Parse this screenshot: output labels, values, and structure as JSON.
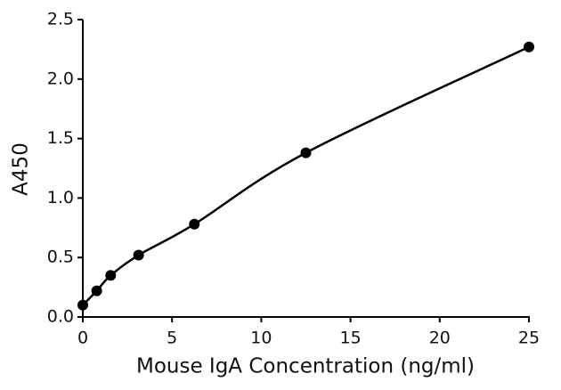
{
  "chart_data": {
    "type": "scatter",
    "xlabel": "Mouse IgA Concentration (ng/ml)",
    "ylabel": "A450",
    "x": [
      0,
      0.78,
      1.56,
      3.125,
      6.25,
      12.5,
      25
    ],
    "values": [
      0.1,
      0.22,
      0.35,
      0.52,
      0.78,
      1.38,
      2.27
    ],
    "color": "#000000",
    "fit_line": true,
    "xlim": [
      0,
      25
    ],
    "xticks": [
      0,
      5,
      10,
      15,
      20,
      25
    ],
    "ylim": [
      0,
      2.5
    ],
    "yticks": [
      {
        "value": 0,
        "label": "0.0"
      },
      0.5,
      {
        "value": 1,
        "label": "1.0"
      },
      1.5,
      {
        "value": 2,
        "label": "2.0"
      },
      2.5
    ]
  }
}
